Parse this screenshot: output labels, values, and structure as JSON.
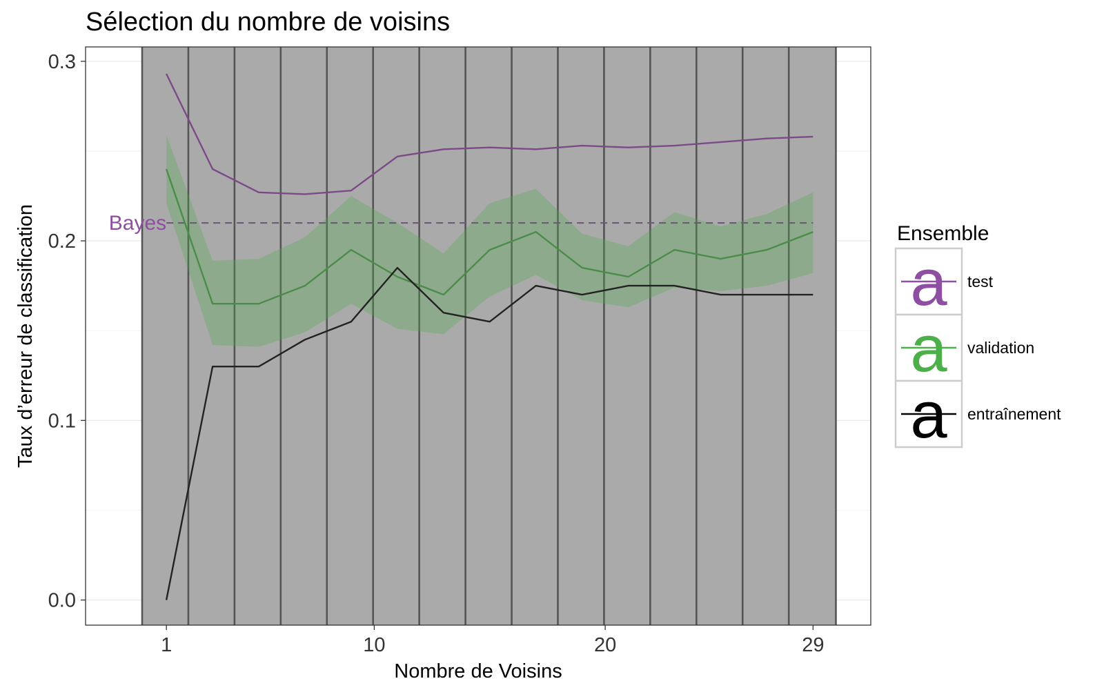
{
  "chart_data": {
    "type": "line",
    "title": "Sélection du nombre de voisins",
    "xlabel": "Nombre de Voisins",
    "ylabel": "Taux d’erreur de classification",
    "xlim": [
      -2.5,
      31.5
    ],
    "ylim": [
      -0.014,
      0.308
    ],
    "x_ticks": [
      1,
      10,
      20,
      29
    ],
    "y_ticks": [
      "0.0",
      "0.1",
      "0.2",
      "0.3"
    ],
    "y_tick_values": [
      0,
      0.1,
      0.2,
      0.3
    ],
    "grid": true,
    "legend_position": "right",
    "legend_title": "Ensemble",
    "x": [
      1,
      3,
      5,
      7,
      9,
      11,
      13,
      15,
      17,
      19,
      21,
      23,
      25,
      27,
      29
    ],
    "series": [
      {
        "name": "test",
        "color": "#8e4ea2",
        "line_color": "#7b4a87",
        "values": [
          0.293,
          0.24,
          0.227,
          0.226,
          0.228,
          0.247,
          0.251,
          0.252,
          0.251,
          0.253,
          0.252,
          0.253,
          0.255,
          0.257,
          0.258
        ]
      },
      {
        "name": "validation",
        "color": "#4daf4a",
        "line_color": "#4c8c4a",
        "values": [
          0.24,
          0.165,
          0.165,
          0.175,
          0.195,
          0.18,
          0.17,
          0.195,
          0.205,
          0.185,
          0.18,
          0.195,
          0.19,
          0.195,
          0.205
        ],
        "band_lower": [
          0.221,
          0.142,
          0.141,
          0.149,
          0.165,
          0.151,
          0.148,
          0.169,
          0.181,
          0.167,
          0.163,
          0.174,
          0.172,
          0.175,
          0.182
        ],
        "band_upper": [
          0.259,
          0.189,
          0.19,
          0.202,
          0.225,
          0.21,
          0.193,
          0.221,
          0.229,
          0.204,
          0.197,
          0.216,
          0.208,
          0.215,
          0.227
        ]
      },
      {
        "name": "entraînement",
        "color": "#000000",
        "line_color": "#222222",
        "values": [
          0.0,
          0.13,
          0.13,
          0.145,
          0.155,
          0.185,
          0.16,
          0.155,
          0.175,
          0.17,
          0.175,
          0.175,
          0.17,
          0.17,
          0.17
        ]
      }
    ],
    "reference_line": {
      "label": "Bayes",
      "value": 0.21,
      "color": "#8e4ea2"
    },
    "shaded_region": {
      "x_start": -0.05,
      "x_end": 29.99,
      "fill": "#aaaaaa"
    },
    "vertical_lines": [
      -0.05,
      1.95,
      3.95,
      5.95,
      7.95,
      9.95,
      11.95,
      13.95,
      15.95,
      17.95,
      19.95,
      21.95,
      23.95,
      25.95,
      27.95,
      29.99
    ],
    "legend_key_glyph": "a"
  }
}
